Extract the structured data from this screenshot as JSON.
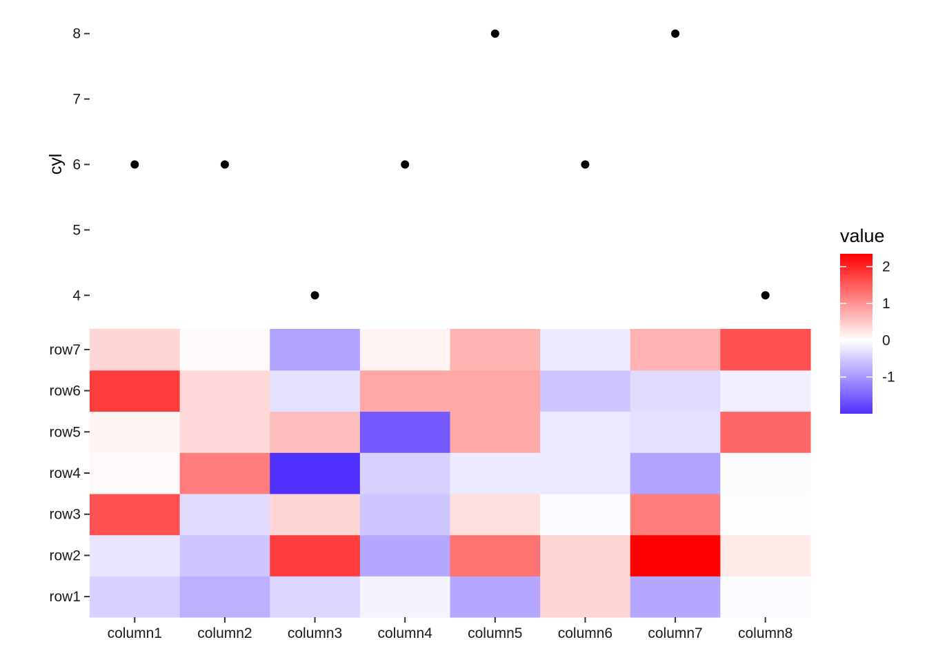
{
  "chart_data": [
    {
      "type": "scatter",
      "ylabel": "cyl",
      "xlabel": "",
      "yticks": [
        4,
        5,
        6,
        7,
        8
      ],
      "ylim": [
        3.75,
        8.25
      ],
      "x": [
        "column1",
        "column2",
        "column3",
        "column4",
        "column5",
        "column6",
        "column7",
        "column8"
      ],
      "y": [
        6,
        6,
        4,
        6,
        8,
        6,
        8,
        4
      ]
    },
    {
      "type": "heatmap",
      "columns": [
        "column1",
        "column2",
        "column3",
        "column4",
        "column5",
        "column6",
        "column7",
        "column8"
      ],
      "rows": [
        "row1",
        "row2",
        "row3",
        "row4",
        "row5",
        "row6",
        "row7"
      ],
      "values": [
        [
          -0.45,
          -0.75,
          -0.4,
          -0.12,
          -0.85,
          0.4,
          -0.85,
          -0.05
        ],
        [
          -0.25,
          -0.55,
          1.8,
          -0.85,
          1.3,
          0.4,
          2.35,
          0.2
        ],
        [
          1.6,
          -0.35,
          0.4,
          -0.55,
          0.3,
          -0.05,
          1.2,
          -0.02
        ],
        [
          0.05,
          1.2,
          -2.0,
          -0.45,
          -0.2,
          -0.22,
          -0.9,
          -0.03
        ],
        [
          0.1,
          0.35,
          0.6,
          -1.6,
          0.8,
          -0.22,
          -0.3,
          1.4
        ],
        [
          1.8,
          0.35,
          -0.3,
          0.8,
          0.8,
          -0.55,
          -0.35,
          -0.15
        ],
        [
          0.4,
          0.05,
          -0.9,
          0.12,
          0.7,
          -0.2,
          0.7,
          1.6
        ]
      ]
    }
  ],
  "legend": {
    "title": "value",
    "ticks": [
      2,
      1,
      0,
      -1
    ],
    "range": [
      -2.0,
      2.35
    ],
    "colors": {
      "low": "#5030ff",
      "mid": "#ffffff",
      "high": "#ff0000"
    }
  },
  "colors": {
    "point": "#000000",
    "tick": "#333333",
    "background": "#ffffff"
  }
}
